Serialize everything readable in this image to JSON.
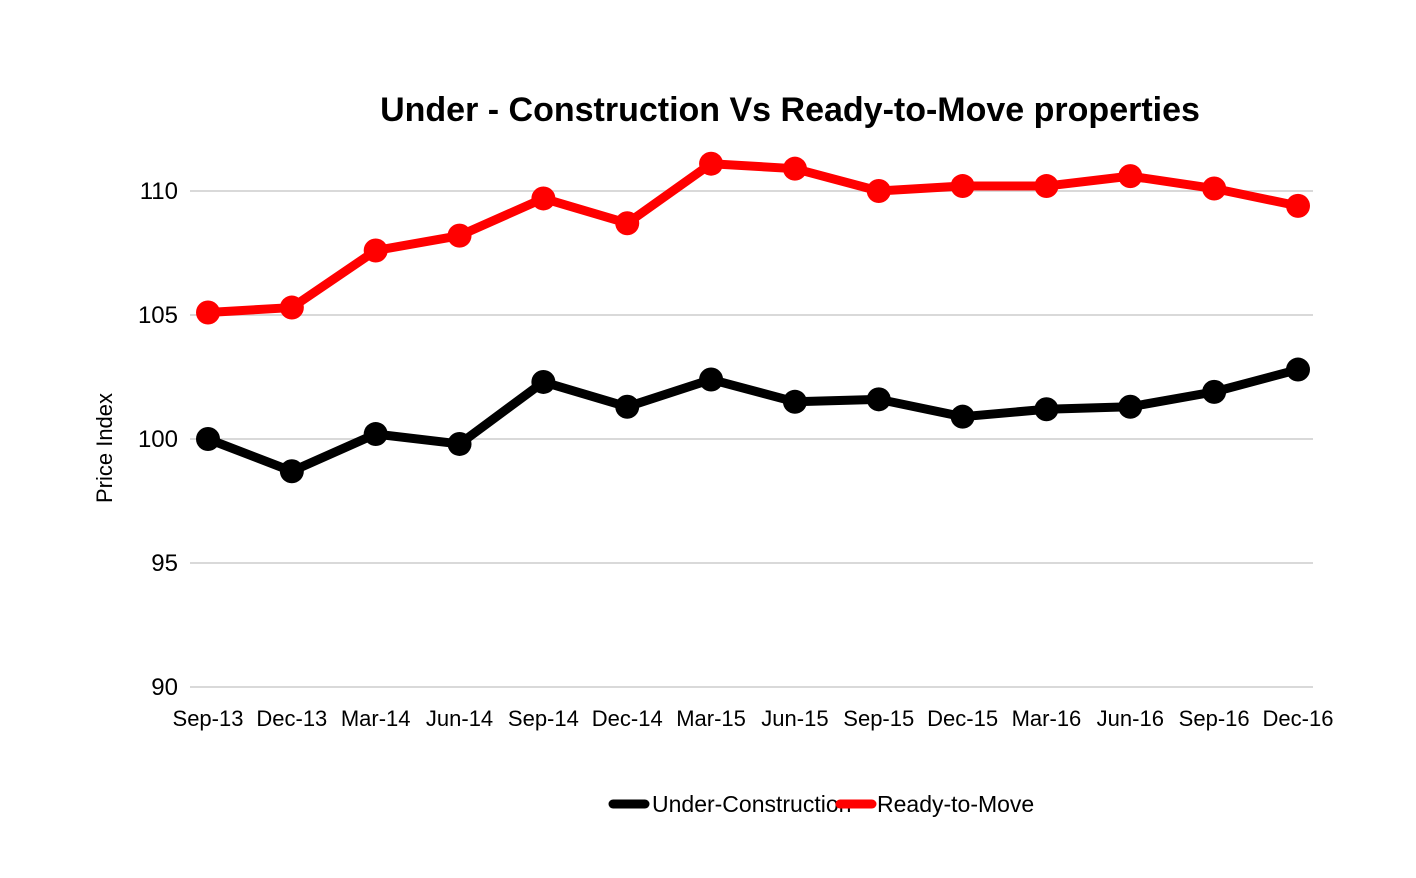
{
  "chart_data": {
    "type": "line",
    "title": "Under - Construction Vs Ready-to-Move properties",
    "xlabel": "",
    "ylabel": "Price Index",
    "ylim": [
      90,
      110
    ],
    "yticks": [
      90,
      95,
      100,
      105,
      110
    ],
    "grid": true,
    "legend_position": "bottom",
    "categories": [
      "Sep-13",
      "Dec-13",
      "Mar-14",
      "Jun-14",
      "Sep-14",
      "Dec-14",
      "Mar-15",
      "Jun-15",
      "Sep-15",
      "Dec-15",
      "Mar-16",
      "Jun-16",
      "Sep-16",
      "Dec-16"
    ],
    "series": [
      {
        "name": "Under-Construction",
        "color": "#000000",
        "values": [
          100.0,
          98.7,
          100.2,
          99.8,
          102.3,
          101.3,
          102.4,
          101.5,
          101.6,
          100.9,
          101.2,
          101.3,
          101.9,
          102.8
        ]
      },
      {
        "name": "Ready-to-Move",
        "color": "#ff0000",
        "values": [
          105.1,
          105.3,
          107.6,
          108.2,
          109.7,
          108.7,
          111.1,
          110.9,
          110.0,
          110.2,
          110.2,
          110.6,
          110.1,
          109.4
        ]
      }
    ]
  }
}
